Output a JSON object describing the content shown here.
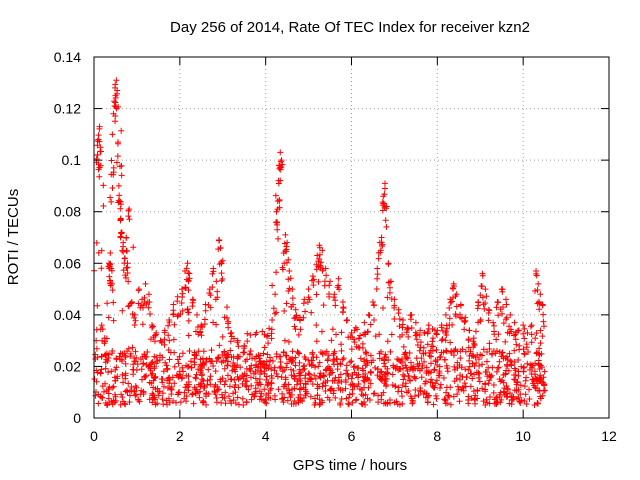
{
  "chart_data": {
    "type": "scatter",
    "title": "Day 256 of 2014, Rate Of TEC Index for receiver kzn2",
    "xlabel": "GPS time / hours",
    "ylabel": "ROTI / TECUs",
    "xlim": [
      0,
      12
    ],
    "ylim": [
      0,
      0.14
    ],
    "x_ticks": [
      0,
      2,
      4,
      6,
      8,
      10,
      12
    ],
    "x_tick_labels": [
      "0",
      "2",
      "4",
      "6",
      "8",
      "10",
      "12"
    ],
    "y_ticks": [
      0,
      0.02,
      0.04,
      0.06,
      0.08,
      0.1,
      0.12,
      0.14
    ],
    "y_tick_labels": [
      "0",
      "0.02",
      "0.04",
      "0.06",
      "0.08",
      "0.1",
      "0.12",
      "0.14"
    ],
    "grid": true,
    "marker": "+",
    "color": "#ff0000",
    "data_extent_hours": [
      0,
      10.5
    ],
    "series": [
      {
        "name": "ROTI",
        "points": [
          [
            0.05,
            0.03
          ],
          [
            0.08,
            0.102
          ],
          [
            0.1,
            0.108
          ],
          [
            0.13,
            0.113
          ],
          [
            0.15,
            0.105
          ],
          [
            0.18,
            0.036
          ],
          [
            0.25,
            0.031
          ],
          [
            0.3,
            0.025
          ],
          [
            0.35,
            0.06
          ],
          [
            0.38,
            0.064
          ],
          [
            0.4,
            0.058
          ],
          [
            0.42,
            0.052
          ],
          [
            0.46,
            0.097
          ],
          [
            0.48,
            0.121
          ],
          [
            0.5,
            0.125
          ],
          [
            0.52,
            0.131
          ],
          [
            0.54,
            0.127
          ],
          [
            0.56,
            0.107
          ],
          [
            0.58,
            0.09
          ],
          [
            0.6,
            0.084
          ],
          [
            0.62,
            0.077
          ],
          [
            0.65,
            0.072
          ],
          [
            0.68,
            0.068
          ],
          [
            0.72,
            0.062
          ],
          [
            0.75,
            0.07
          ],
          [
            0.78,
            0.06
          ],
          [
            0.82,
            0.081
          ],
          [
            0.88,
            0.045
          ],
          [
            0.95,
            0.04
          ],
          [
            1.05,
            0.05
          ],
          [
            1.12,
            0.046
          ],
          [
            1.2,
            0.052
          ],
          [
            1.28,
            0.048
          ],
          [
            1.35,
            0.036
          ],
          [
            1.45,
            0.033
          ],
          [
            1.55,
            0.03
          ],
          [
            1.65,
            0.034
          ],
          [
            1.75,
            0.038
          ],
          [
            1.85,
            0.044
          ],
          [
            1.95,
            0.047
          ],
          [
            2.05,
            0.05
          ],
          [
            2.12,
            0.057
          ],
          [
            2.18,
            0.06
          ],
          [
            2.22,
            0.056
          ],
          [
            2.3,
            0.046
          ],
          [
            2.4,
            0.04
          ],
          [
            2.5,
            0.036
          ],
          [
            2.6,
            0.044
          ],
          [
            2.7,
            0.05
          ],
          [
            2.78,
            0.058
          ],
          [
            2.85,
            0.053
          ],
          [
            2.92,
            0.069
          ],
          [
            2.95,
            0.066
          ],
          [
            3.0,
            0.061
          ],
          [
            3.1,
            0.043
          ],
          [
            3.2,
            0.033
          ],
          [
            3.35,
            0.03
          ],
          [
            3.5,
            0.028
          ],
          [
            3.65,
            0.026
          ],
          [
            3.75,
            0.023
          ],
          [
            3.85,
            0.022
          ],
          [
            3.95,
            0.025
          ],
          [
            4.05,
            0.032
          ],
          [
            4.15,
            0.038
          ],
          [
            4.22,
            0.048
          ],
          [
            4.26,
            0.076
          ],
          [
            4.28,
            0.081
          ],
          [
            4.3,
            0.092
          ],
          [
            4.32,
            0.098
          ],
          [
            4.34,
            0.103
          ],
          [
            4.37,
            0.1
          ],
          [
            4.42,
            0.064
          ],
          [
            4.46,
            0.071
          ],
          [
            4.5,
            0.068
          ],
          [
            4.55,
            0.057
          ],
          [
            4.62,
            0.05
          ],
          [
            4.7,
            0.042
          ],
          [
            4.8,
            0.039
          ],
          [
            4.9,
            0.046
          ],
          [
            5.0,
            0.05
          ],
          [
            5.1,
            0.055
          ],
          [
            5.2,
            0.063
          ],
          [
            5.25,
            0.067
          ],
          [
            5.32,
            0.065
          ],
          [
            5.4,
            0.058
          ],
          [
            5.5,
            0.053
          ],
          [
            5.6,
            0.048
          ],
          [
            5.7,
            0.054
          ],
          [
            5.8,
            0.045
          ],
          [
            5.9,
            0.038
          ],
          [
            6.0,
            0.033
          ],
          [
            6.1,
            0.035
          ],
          [
            6.2,
            0.032
          ],
          [
            6.3,
            0.037
          ],
          [
            6.4,
            0.04
          ],
          [
            6.5,
            0.045
          ],
          [
            6.6,
            0.058
          ],
          [
            6.66,
            0.068
          ],
          [
            6.7,
            0.07
          ],
          [
            6.74,
            0.086
          ],
          [
            6.78,
            0.091
          ],
          [
            6.82,
            0.082
          ],
          [
            6.86,
            0.06
          ],
          [
            6.92,
            0.053
          ],
          [
            7.0,
            0.046
          ],
          [
            7.1,
            0.042
          ],
          [
            7.2,
            0.038
          ],
          [
            7.3,
            0.035
          ],
          [
            7.4,
            0.04
          ],
          [
            7.5,
            0.037
          ],
          [
            7.6,
            0.034
          ],
          [
            7.7,
            0.033
          ],
          [
            7.8,
            0.036
          ],
          [
            7.9,
            0.031
          ],
          [
            8.0,
            0.034
          ],
          [
            8.1,
            0.036
          ],
          [
            8.2,
            0.04
          ],
          [
            8.3,
            0.046
          ],
          [
            8.38,
            0.052
          ],
          [
            8.45,
            0.048
          ],
          [
            8.55,
            0.044
          ],
          [
            8.65,
            0.039
          ],
          [
            8.75,
            0.034
          ],
          [
            8.85,
            0.031
          ],
          [
            8.95,
            0.045
          ],
          [
            9.05,
            0.056
          ],
          [
            9.12,
            0.05
          ],
          [
            9.2,
            0.042
          ],
          [
            9.3,
            0.037
          ],
          [
            9.4,
            0.045
          ],
          [
            9.5,
            0.05
          ],
          [
            9.6,
            0.046
          ],
          [
            9.7,
            0.04
          ],
          [
            9.8,
            0.037
          ],
          [
            9.9,
            0.034
          ],
          [
            10.0,
            0.036
          ],
          [
            10.1,
            0.033
          ],
          [
            10.2,
            0.036
          ],
          [
            10.3,
            0.057
          ],
          [
            10.35,
            0.052
          ],
          [
            10.4,
            0.048
          ],
          [
            10.45,
            0.044
          ],
          [
            10.5,
            0.018
          ]
        ]
      }
    ],
    "dense_band": {
      "description_units": "ROTI values filling the 0.005-0.035 TECU range continuously from 0 to 10.5 hours",
      "x_range": [
        0,
        10.5
      ],
      "y_range": [
        0.005,
        0.035
      ],
      "typical": 0.015,
      "sample_count": 1400
    }
  }
}
